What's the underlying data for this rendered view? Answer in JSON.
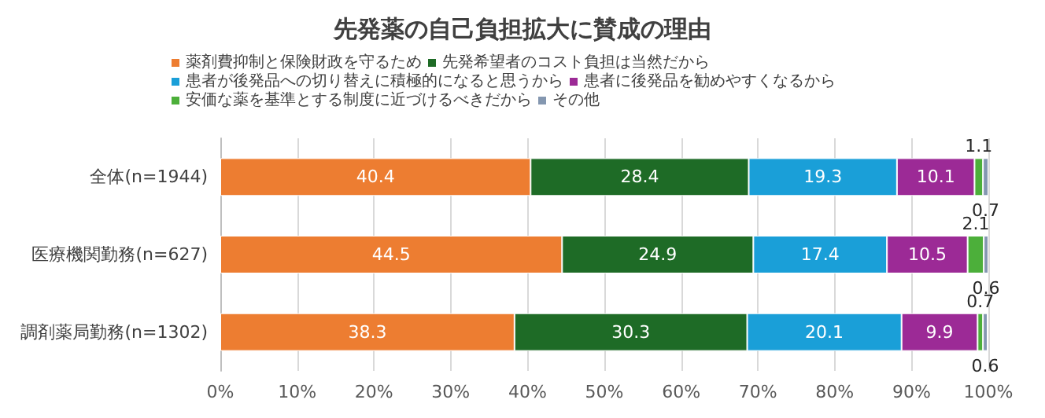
{
  "chart_data": {
    "type": "bar",
    "orientation": "horizontal",
    "stacked": true,
    "title": "先発薬の自己負担拡大に賛成の理由",
    "categories": [
      "全体(n=1944)",
      "医療機関勤務(n=627)",
      "調剤薬局勤務(n=1302)"
    ],
    "series": [
      {
        "name": "薬剤費抑制と保険財政を守るため",
        "color": "#ed7d31",
        "values": [
          40.4,
          44.5,
          38.3
        ]
      },
      {
        "name": "先発希望者のコスト負担は当然だから",
        "color": "#1e6b26",
        "values": [
          28.4,
          24.9,
          30.3
        ]
      },
      {
        "name": "患者が後発品への切り替えに積極的になると思うから",
        "color": "#1a9fd8",
        "values": [
          19.3,
          17.4,
          20.1
        ]
      },
      {
        "name": "患者に後発品を勧めやすくなるから",
        "color": "#9c2a96",
        "values": [
          10.1,
          10.5,
          9.9
        ]
      },
      {
        "name": "安価な薬を基準とする制度に近づけるべきだから",
        "color": "#4caf3a",
        "values": [
          1.1,
          2.1,
          0.7
        ]
      },
      {
        "name": "その他",
        "color": "#8497b0",
        "values": [
          0.7,
          0.6,
          0.6
        ]
      }
    ],
    "xlim": [
      0,
      100
    ],
    "xticks": [
      {
        "value": 0,
        "label": "0%"
      },
      {
        "value": 10,
        "label": "10%"
      },
      {
        "value": 20,
        "label": "20%"
      },
      {
        "value": 30,
        "label": "30%"
      },
      {
        "value": 40,
        "label": "40%"
      },
      {
        "value": 50,
        "label": "50%"
      },
      {
        "value": 60,
        "label": "60%"
      },
      {
        "value": 70,
        "label": "70%"
      },
      {
        "value": 80,
        "label": "80%"
      },
      {
        "value": 90,
        "label": "90%"
      },
      {
        "value": 100,
        "label": "100%"
      }
    ],
    "data_labels": true,
    "grid": "x",
    "legend": "top"
  }
}
